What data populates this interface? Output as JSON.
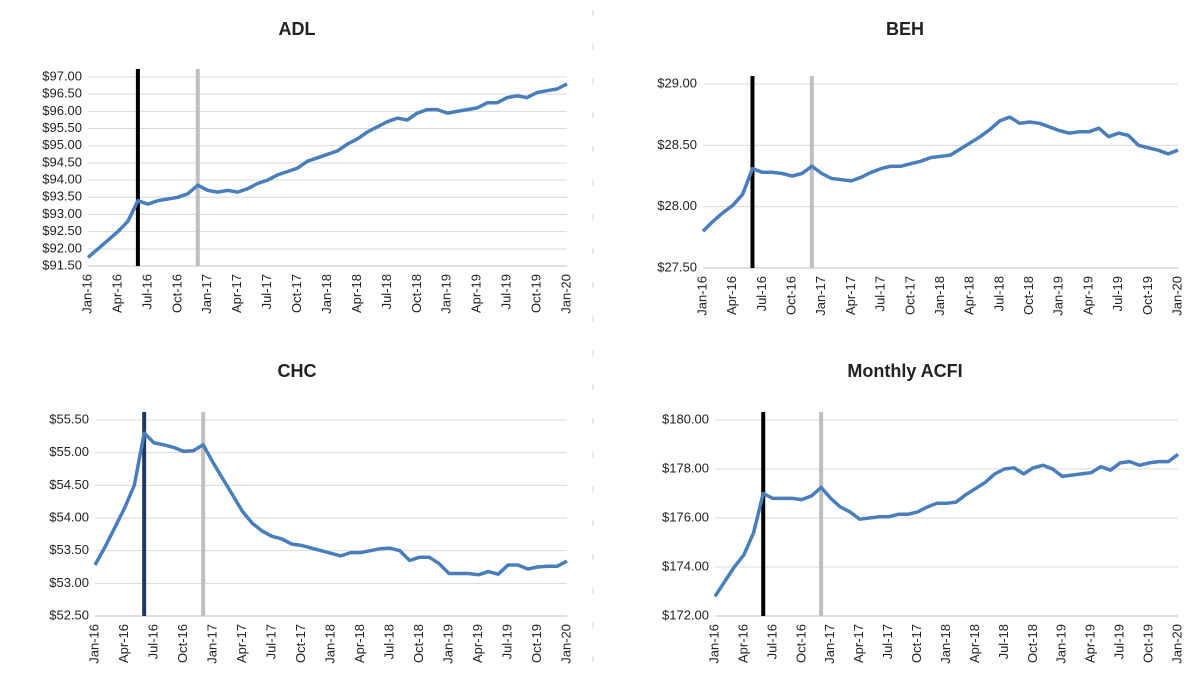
{
  "chart_data": [
    {
      "type": "line",
      "title": "ADL",
      "color": "#4a7ebb",
      "grid": true,
      "categories": [
        "Jan-16",
        null,
        null,
        "Apr-16",
        null,
        null,
        "Jul-16",
        null,
        null,
        "Oct-16",
        null,
        null,
        "Jan-17",
        null,
        null,
        "Apr-17",
        null,
        null,
        "Jul-17",
        null,
        null,
        "Oct-17",
        null,
        null,
        "Jan-18",
        null,
        null,
        "Apr-18",
        null,
        null,
        "Jul-18",
        null,
        null,
        "Oct-18",
        null,
        null,
        "Jan-19",
        null,
        null,
        "Apr-19",
        null,
        null,
        "Jul-19",
        null,
        null,
        "Oct-19",
        null,
        null,
        "Jan-20"
      ],
      "values": [
        91.75,
        92.0,
        92.25,
        92.5,
        92.8,
        93.4,
        93.3,
        93.4,
        93.45,
        93.5,
        93.6,
        93.85,
        93.7,
        93.65,
        93.7,
        93.65,
        93.75,
        93.9,
        94.0,
        94.15,
        94.25,
        94.35,
        94.55,
        94.65,
        94.75,
        94.85,
        95.05,
        95.2,
        95.4,
        95.55,
        95.7,
        95.8,
        95.75,
        95.95,
        96.05,
        96.05,
        95.95,
        96.0,
        96.05,
        96.1,
        96.25,
        96.25,
        96.4,
        96.45,
        96.4,
        96.55,
        96.6,
        96.65,
        96.8
      ],
      "ylim": [
        91.5,
        97.0
      ],
      "yticks": [
        {
          "value": 91.5,
          "label": "$91.50"
        },
        {
          "value": 92.0,
          "label": "$92.00"
        },
        {
          "value": 92.5,
          "label": "$92.50"
        },
        {
          "value": 93.0,
          "label": "$93.00"
        },
        {
          "value": 93.5,
          "label": "$93.50"
        },
        {
          "value": 94.0,
          "label": "$94.00"
        },
        {
          "value": 94.5,
          "label": "$94.50"
        },
        {
          "value": 95.0,
          "label": "$95.00"
        },
        {
          "value": 95.5,
          "label": "$95.50"
        },
        {
          "value": 96.0,
          "label": "$96.00"
        },
        {
          "value": 96.5,
          "label": "$96.50"
        },
        {
          "value": 97.0,
          "label": "$97.00"
        }
      ],
      "vlines": [
        {
          "at": 5,
          "color": "#000000"
        },
        {
          "at": 11,
          "color": "#bfbfbf"
        }
      ]
    },
    {
      "type": "line",
      "title": "BEH",
      "color": "#4a7ebb",
      "grid": true,
      "categories": [
        "Jan-16",
        null,
        null,
        "Apr-16",
        null,
        null,
        "Jul-16",
        null,
        null,
        "Oct-16",
        null,
        null,
        "Jan-17",
        null,
        null,
        "Apr-17",
        null,
        null,
        "Jul-17",
        null,
        null,
        "Oct-17",
        null,
        null,
        "Jan-18",
        null,
        null,
        "Apr-18",
        null,
        null,
        "Jul-18",
        null,
        null,
        "Oct-18",
        null,
        null,
        "Jan-19",
        null,
        null,
        "Apr-19",
        null,
        null,
        "Jul-19",
        null,
        null,
        "Oct-19",
        null,
        null,
        "Jan-20"
      ],
      "values": [
        27.8,
        27.88,
        27.95,
        28.01,
        28.1,
        28.31,
        28.28,
        28.28,
        28.27,
        28.25,
        28.27,
        28.33,
        28.27,
        28.23,
        28.22,
        28.21,
        28.24,
        28.28,
        28.31,
        28.33,
        28.33,
        28.35,
        28.37,
        28.4,
        28.41,
        28.42,
        28.47,
        28.52,
        28.57,
        28.63,
        28.7,
        28.73,
        28.68,
        28.69,
        28.68,
        28.65,
        28.62,
        28.6,
        28.61,
        28.61,
        28.64,
        28.57,
        28.6,
        28.58,
        28.5,
        28.48,
        28.46,
        28.43,
        28.46
      ],
      "ylim": [
        27.5,
        29.0
      ],
      "yticks": [
        {
          "value": 27.5,
          "label": "$27.50"
        },
        {
          "value": 28.0,
          "label": "$28.00"
        },
        {
          "value": 28.5,
          "label": "$28.50"
        },
        {
          "value": 29.0,
          "label": "$29.00"
        }
      ],
      "vlines": [
        {
          "at": 5,
          "color": "#000000"
        },
        {
          "at": 11,
          "color": "#bfbfbf"
        }
      ]
    },
    {
      "type": "line",
      "title": "CHC",
      "color": "#4a7ebb",
      "grid": true,
      "categories": [
        "Jan-16",
        null,
        null,
        "Apr-16",
        null,
        null,
        "Jul-16",
        null,
        null,
        "Oct-16",
        null,
        null,
        "Jan-17",
        null,
        null,
        "Apr-17",
        null,
        null,
        "Jul-17",
        null,
        null,
        "Oct-17",
        null,
        null,
        "Jan-18",
        null,
        null,
        "Apr-18",
        null,
        null,
        "Jul-18",
        null,
        null,
        "Oct-18",
        null,
        null,
        "Jan-19",
        null,
        null,
        "Apr-19",
        null,
        null,
        "Jul-19",
        null,
        null,
        "Oct-19",
        null,
        null,
        "Jan-20"
      ],
      "values": [
        53.28,
        53.55,
        53.85,
        54.15,
        54.5,
        55.3,
        55.15,
        55.12,
        55.08,
        55.02,
        55.03,
        55.12,
        54.85,
        54.6,
        54.35,
        54.1,
        53.92,
        53.8,
        53.72,
        53.68,
        53.6,
        53.58,
        53.54,
        53.5,
        53.46,
        53.42,
        53.47,
        53.47,
        53.5,
        53.53,
        53.54,
        53.5,
        53.35,
        53.4,
        53.4,
        53.3,
        53.15,
        53.15,
        53.15,
        53.13,
        53.18,
        53.14,
        53.28,
        53.28,
        53.22,
        53.25,
        53.26,
        53.26,
        53.34
      ],
      "ylim": [
        52.5,
        55.5
      ],
      "yticks": [
        {
          "value": 52.5,
          "label": "$52.50"
        },
        {
          "value": 53.0,
          "label": "$53.00"
        },
        {
          "value": 53.5,
          "label": "$53.50"
        },
        {
          "value": 54.0,
          "label": "$54.00"
        },
        {
          "value": 54.5,
          "label": "$54.50"
        },
        {
          "value": 55.0,
          "label": "$55.00"
        },
        {
          "value": 55.5,
          "label": "$55.50"
        }
      ],
      "vlines": [
        {
          "at": 5,
          "color": "#1f3864"
        },
        {
          "at": 11,
          "color": "#bfbfbf"
        }
      ]
    },
    {
      "type": "line",
      "title": "Monthly ACFI",
      "color": "#4a7ebb",
      "grid": true,
      "categories": [
        "Jan-16",
        null,
        null,
        "Apr-16",
        null,
        null,
        "Jul-16",
        null,
        null,
        "Oct-16",
        null,
        null,
        "Jan-17",
        null,
        null,
        "Apr-17",
        null,
        null,
        "Jul-17",
        null,
        null,
        "Oct-17",
        null,
        null,
        "Jan-18",
        null,
        null,
        "Apr-18",
        null,
        null,
        "Jul-18",
        null,
        null,
        "Oct-18",
        null,
        null,
        "Jan-19",
        null,
        null,
        "Apr-19",
        null,
        null,
        "Jul-19",
        null,
        null,
        "Oct-19",
        null,
        null,
        "Jan-20"
      ],
      "values": [
        172.8,
        173.4,
        174.0,
        174.5,
        175.4,
        177.0,
        176.8,
        176.8,
        176.8,
        176.75,
        176.9,
        177.25,
        176.8,
        176.45,
        176.25,
        175.95,
        176.0,
        176.05,
        176.05,
        176.15,
        176.15,
        176.25,
        176.45,
        176.6,
        176.6,
        176.65,
        176.95,
        177.2,
        177.45,
        177.8,
        178.0,
        178.05,
        177.8,
        178.05,
        178.15,
        178.0,
        177.7,
        177.75,
        177.8,
        177.85,
        178.1,
        177.95,
        178.25,
        178.3,
        178.15,
        178.25,
        178.3,
        178.3,
        178.6
      ],
      "ylim": [
        172.0,
        180.0
      ],
      "yticks": [
        {
          "value": 172.0,
          "label": "$172.00"
        },
        {
          "value": 174.0,
          "label": "$174.00"
        },
        {
          "value": 176.0,
          "label": "$176.00"
        },
        {
          "value": 178.0,
          "label": "$178.00"
        },
        {
          "value": 180.0,
          "label": "$180.00"
        }
      ],
      "vlines": [
        {
          "at": 5,
          "color": "#000000"
        },
        {
          "at": 11,
          "color": "#bfbfbf"
        }
      ]
    }
  ]
}
